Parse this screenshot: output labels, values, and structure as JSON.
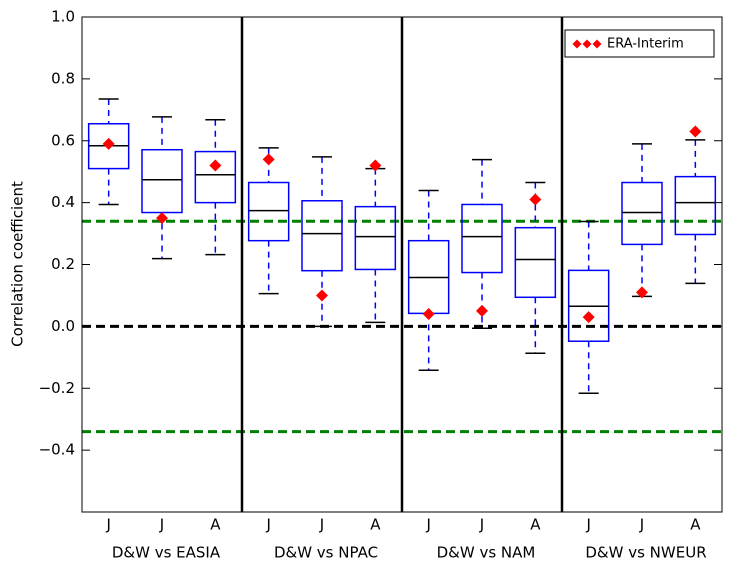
{
  "chart_data": {
    "type": "box",
    "ylabel": "Correlation coefficient",
    "categories": [
      "J",
      "J",
      "A",
      "J",
      "J",
      "A",
      "J",
      "J",
      "A",
      "J",
      "J",
      "A"
    ],
    "groups": [
      "D&W vs EASIA",
      "D&W vs NPAC",
      "D&W vs NAM",
      "D&W vs NWEUR"
    ],
    "boxes": {
      "color": "#0000ff",
      "whisker_low": [
        0.394,
        0.219,
        0.232,
        0.106,
        0.0,
        0.013,
        -0.142,
        -0.006,
        -0.087,
        -0.216,
        0.097,
        0.139
      ],
      "q1": [
        0.51,
        0.368,
        0.4,
        0.277,
        0.18,
        0.184,
        0.042,
        0.174,
        0.094,
        -0.048,
        0.265,
        0.297
      ],
      "median": [
        0.584,
        0.474,
        0.49,
        0.374,
        0.3,
        0.29,
        0.158,
        0.29,
        0.216,
        0.065,
        0.368,
        0.4
      ],
      "q3": [
        0.655,
        0.571,
        0.565,
        0.465,
        0.406,
        0.387,
        0.277,
        0.394,
        0.319,
        0.181,
        0.465,
        0.484
      ],
      "whisker_high": [
        0.735,
        0.677,
        0.668,
        0.577,
        0.548,
        0.51,
        0.439,
        0.539,
        0.465,
        0.339,
        0.59,
        0.603
      ]
    },
    "series": [
      {
        "name": "ERA-Interim",
        "color": "#ff0000",
        "values": [
          0.59,
          0.35,
          0.52,
          0.54,
          0.1,
          0.52,
          0.04,
          0.05,
          0.41,
          0.03,
          0.11,
          0.63
        ]
      }
    ],
    "hlines": [
      {
        "value": 0.34,
        "color": "#008000"
      },
      {
        "value": 0.0,
        "color": "#000000"
      },
      {
        "value": -0.34,
        "color": "#008000"
      }
    ],
    "ylim": [
      -0.6,
      1.0
    ],
    "yticks": [
      {
        "value": -0.4,
        "label": "−0.4"
      },
      {
        "value": -0.2,
        "label": "−0.2"
      },
      {
        "value": 0.0,
        "label": "0.0"
      },
      0.2,
      0.4,
      0.6,
      0.8,
      {
        "value": 1.0,
        "label": "1.0"
      }
    ],
    "legend": "upper right"
  }
}
